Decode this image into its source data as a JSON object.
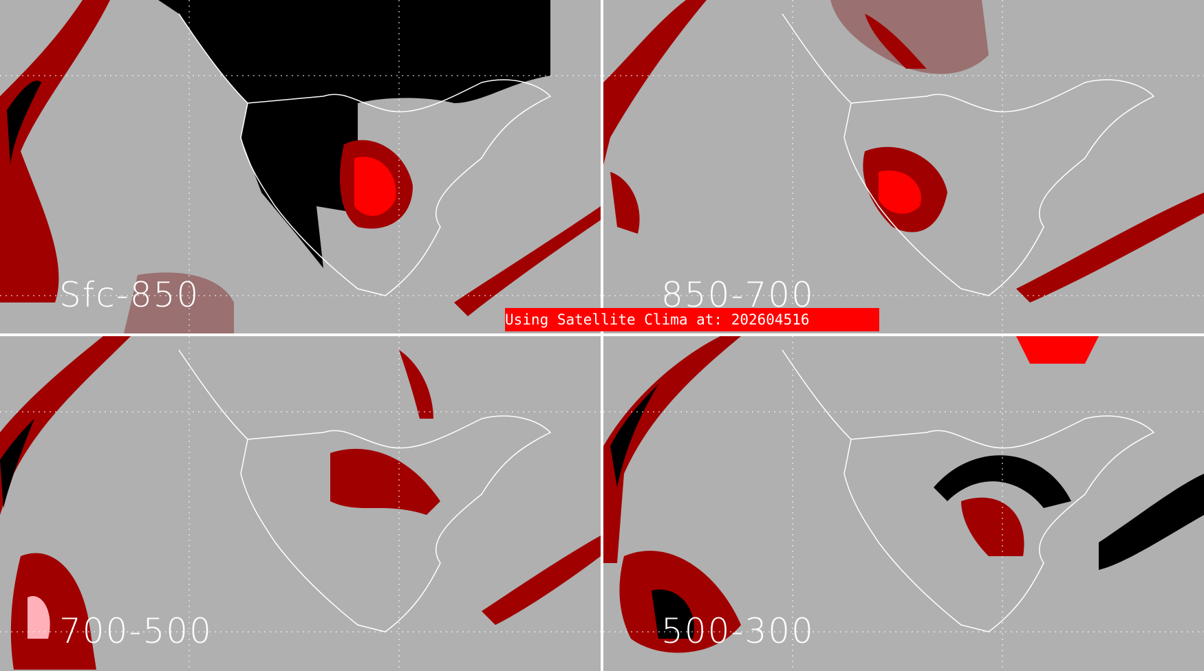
{
  "panels": [
    {
      "label": "Sfc-850"
    },
    {
      "label": "850-700"
    },
    {
      "label": "700-500"
    },
    {
      "label": "500-300"
    }
  ],
  "banner": {
    "text": "Using Satellite Clima at: 202604516"
  },
  "colors": {
    "background": "#b0b0b0",
    "mask": "#000000",
    "low": "#9a7070",
    "mid": "#a00000",
    "high": "#ff0000",
    "peak": "#ffb0b8",
    "coast": "#ffffff",
    "banner": "#ff0000"
  }
}
